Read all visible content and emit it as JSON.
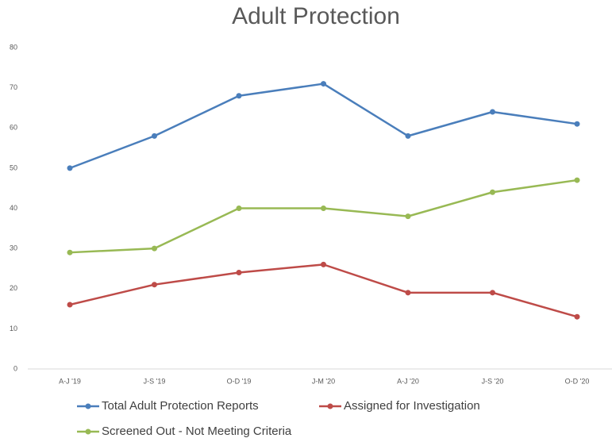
{
  "chart_data": {
    "type": "line",
    "title": "Adult Protection",
    "categories": [
      "A-J '19",
      "J-S '19",
      "O-D '19",
      "J-M '20",
      "A-J '20",
      "J-S '20",
      "O-D '20"
    ],
    "series": [
      {
        "name": "Total Adult Protection Reports",
        "color": "#4a7ebb",
        "values": [
          50,
          58,
          68,
          71,
          58,
          64,
          61
        ]
      },
      {
        "name": "Assigned for Investigation",
        "color": "#be4b48",
        "values": [
          16,
          21,
          24,
          26,
          19,
          19,
          13
        ]
      },
      {
        "name": "Screened Out - Not Meeting Criteria",
        "color": "#98b954",
        "values": [
          29,
          30,
          40,
          40,
          38,
          44,
          47
        ]
      }
    ],
    "ylim": [
      0,
      80
    ],
    "yticks": [
      0,
      10,
      20,
      30,
      40,
      50,
      60,
      70,
      80
    ],
    "grid": false,
    "legend": "bottom"
  }
}
